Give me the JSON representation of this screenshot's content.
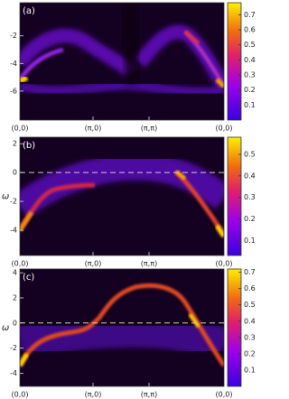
{
  "chart_data": [
    {
      "type": "heatmap",
      "label": "(a)",
      "categories": [
        "(0,0)",
        "(π,0)",
        "(π,π)",
        "(0,0)"
      ],
      "ylim": [
        -8.1,
        0.4
      ],
      "yticks": [
        -2,
        -4,
        -6
      ],
      "clim": [
        0,
        0.78
      ],
      "cticks": [
        0.1,
        0.2,
        0.3,
        0.4,
        0.5,
        0.6,
        0.7
      ]
    },
    {
      "type": "heatmap",
      "label": "(b)",
      "ylabel": "ω",
      "categories": [
        "(0,0)",
        "(π,0)",
        "(π,π)",
        "(0,0)"
      ],
      "ylim": [
        -5.75,
        2.45
      ],
      "yticks": [
        2,
        0,
        -2,
        -4
      ],
      "reference_line": 0,
      "clim": [
        0.03,
        0.58
      ],
      "cticks": [
        0.1,
        0.2,
        0.3,
        0.4,
        0.5
      ]
    },
    {
      "type": "heatmap",
      "label": "(c)",
      "ylabel": "ω",
      "categories": [
        "(0,0)",
        "(π,0)",
        "(π,π)",
        "(0,0)"
      ],
      "ylim": [
        -5.05,
        4.3
      ],
      "yticks": [
        4,
        2,
        0,
        -2,
        -4
      ],
      "reference_line": 0,
      "clim": [
        0,
        0.72
      ],
      "cticks": [
        0.1,
        0.2,
        0.3,
        0.4,
        0.5,
        0.6,
        0.7
      ]
    }
  ]
}
